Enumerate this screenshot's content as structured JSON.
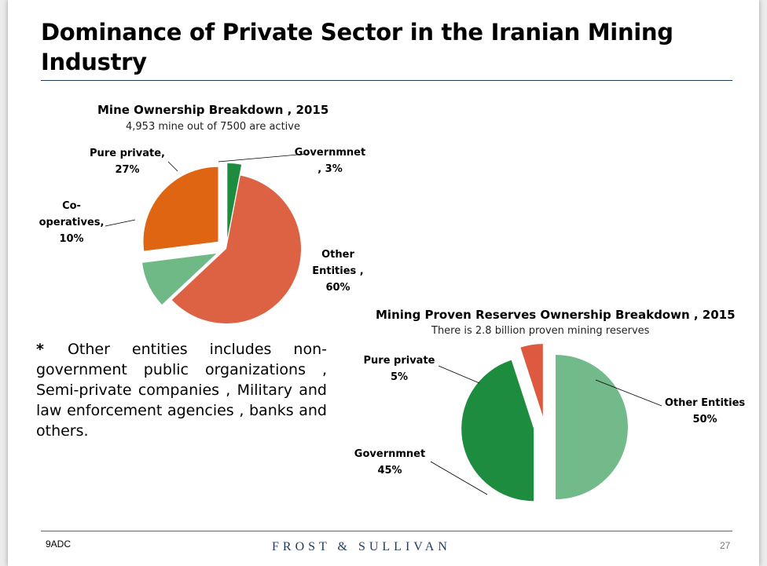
{
  "slide": {
    "title": "Dominance of Private Sector in the Iranian Mining Industry",
    "footer_left": "9ADC",
    "footer_brand": "FROST & SULLIVAN",
    "page_number": "27"
  },
  "note": {
    "marker": "*",
    "text": "Other entities includes non-government public organizations , Semi-private companies , Military and law enforcement agencies , banks and others."
  },
  "chart_data": [
    {
      "type": "pie",
      "title": "Mine Ownership Breakdown , 2015",
      "subtitle": "4,953 mine out of 7500 are active",
      "slices": [
        {
          "name": "Governmnet",
          "value": 3,
          "label_lines": [
            "Governmnet",
            ", 3%"
          ],
          "color": "#1e8c3f",
          "exploded": true
        },
        {
          "name": "Other Entities",
          "value": 60,
          "label_lines": [
            "Other",
            "Entities ,",
            "60%"
          ],
          "color": "#dd6244",
          "exploded": false
        },
        {
          "name": "Co-operatives",
          "value": 10,
          "label_lines": [
            "Co-",
            "operatives,",
            "10%"
          ],
          "color": "#6fb987",
          "exploded": true
        },
        {
          "name": "Pure private",
          "value": 27,
          "label_lines": [
            "Pure private,",
            "27%"
          ],
          "color": "#df6512",
          "exploded": true
        }
      ]
    },
    {
      "type": "pie",
      "title": "Mining Proven Reserves Ownership Breakdown , 2015",
      "subtitle": "There is 2.8 billion proven mining reserves",
      "slices": [
        {
          "name": "Other Entities",
          "value": 50,
          "label_lines": [
            "Other Entities",
            "50%"
          ],
          "color": "#72ba89",
          "exploded": true
        },
        {
          "name": "Governmnet",
          "value": 45,
          "label_lines": [
            "Governmnet",
            "45%"
          ],
          "color": "#1e8c3f",
          "exploded": true
        },
        {
          "name": "Pure private",
          "value": 5,
          "label_lines": [
            "Pure private",
            "5%"
          ],
          "color": "#dd5a40",
          "exploded": true
        }
      ]
    }
  ]
}
